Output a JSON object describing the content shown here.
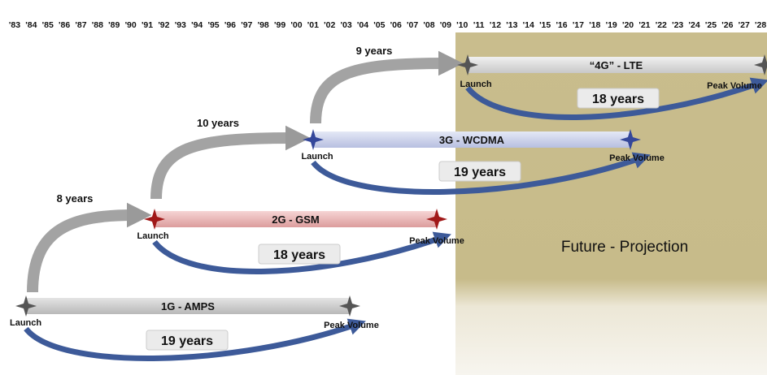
{
  "timeline": {
    "years": [
      "'83",
      "'84",
      "'85",
      "'86",
      "'87",
      "'88",
      "'89",
      "'90",
      "'91",
      "'92",
      "'93",
      "'94",
      "'95",
      "'96",
      "'97",
      "'98",
      "'99",
      "'00",
      "'01",
      "'02",
      "'03",
      "'04",
      "'05",
      "'06",
      "'07",
      "'08",
      "'09",
      "'10",
      "'11",
      "'12",
      "'13",
      "'14",
      "'15",
      "'16",
      "'17",
      "'18",
      "'19",
      "'20",
      "'21",
      "'22",
      "'23",
      "'24",
      "'25",
      "'26",
      "'27",
      "'28"
    ]
  },
  "future": {
    "label": "Future - Projection"
  },
  "generations": [
    {
      "name": "1G - AMPS",
      "launch": "Launch",
      "peak": "Peak Volume",
      "duration": "19 years"
    },
    {
      "name": "2G - GSM",
      "launch": "Launch",
      "peak": "Peak Volume",
      "duration": "18 years"
    },
    {
      "name": "3G - WCDMA",
      "launch": "Launch",
      "peak": "Peak Volume",
      "duration": "19 years"
    },
    {
      "name": "“4G” - LTE",
      "launch": "Launch",
      "peak": "Peak Volume",
      "duration": "18 years"
    }
  ],
  "transitions": [
    {
      "label": "8 years"
    },
    {
      "label": "10 years"
    },
    {
      "label": "9 years"
    }
  ]
}
